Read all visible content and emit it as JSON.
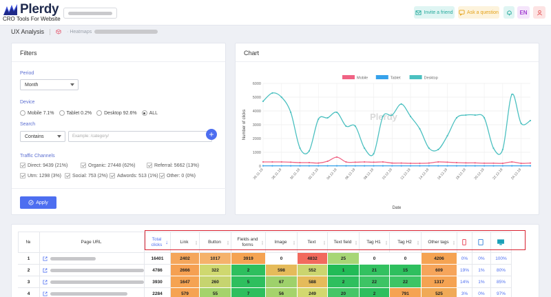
{
  "brand": {
    "name": "Plerdy",
    "tagline": "CRO Tools For Website"
  },
  "topbar": {
    "invite_label": "Invite a friend",
    "ask_label": "Ask a question",
    "lang": "EN"
  },
  "breadcrumb": {
    "title": "UX Analysis",
    "link": "Heatmaps"
  },
  "filters": {
    "title": "Filters",
    "period_label": "Period",
    "period_value": "Month",
    "device_label": "Device",
    "devices": [
      {
        "label": "Mobile 7.1%",
        "checked": false
      },
      {
        "label": "Tablet 0.2%",
        "checked": false
      },
      {
        "label": "Desktop 92.6%",
        "checked": false
      },
      {
        "label": "ALL",
        "checked": true
      }
    ],
    "search_label": "Search",
    "search_mode": "Contains",
    "search_placeholder": "Example: /category/",
    "plus_label": "+",
    "channels_label": "Traffic Channels",
    "channels_row1": [
      "Direct: 9439 (21%)",
      "Organic: 27448 (62%)",
      "Referral: 5662 (13%)"
    ],
    "channels_row2": [
      "Utm: 1298 (3%)",
      "Social: 753 (2%)",
      "Adwords: 513 (1%)",
      "Other: 0 (0%)"
    ],
    "apply_label": "Apply"
  },
  "chart": {
    "title": "Chart",
    "watermark": "Plerdy"
  },
  "chart_data": {
    "type": "line",
    "xlabel": "Date",
    "ylabel": "Number of clicks",
    "ylim": [
      0,
      6000
    ],
    "yticks": [
      0,
      1000,
      2000,
      3000,
      4000,
      5000,
      6000
    ],
    "x_ticks": [
      "26.11.19",
      "28.11.19",
      "30.11.19",
      "02.12.19",
      "04.12.19",
      "06.12.19",
      "08.12.19",
      "10.12.19",
      "12.12.19",
      "14.12.19",
      "16.12.19",
      "18.12.19",
      "20.12.19",
      "22.12.19",
      "24.12.19"
    ],
    "legend_position": "top",
    "series": [
      {
        "name": "Mobile",
        "color": "#f06384",
        "values": [
          300,
          300,
          300,
          280,
          250,
          250,
          220,
          350,
          650,
          300,
          280,
          300,
          280,
          300,
          220,
          220,
          200,
          200,
          220,
          300,
          280,
          250,
          230,
          230,
          210,
          210,
          200,
          300,
          200,
          220
        ]
      },
      {
        "name": "Tablet",
        "color": "#36a2eb",
        "values": [
          20,
          20,
          20,
          20,
          20,
          20,
          20,
          20,
          20,
          20,
          20,
          20,
          20,
          20,
          20,
          20,
          20,
          20,
          20,
          20,
          20,
          20,
          20,
          20,
          20,
          20,
          20,
          20,
          20,
          20
        ]
      },
      {
        "name": "Desktop",
        "color": "#4bc0c0",
        "values": [
          4700,
          5300,
          5000,
          3900,
          1300,
          1100,
          3400,
          3500,
          3900,
          2900,
          2900,
          1300,
          900,
          3600,
          3700,
          4500,
          3600,
          2700,
          1300,
          1200,
          2200,
          3500,
          3700,
          3700,
          3500,
          1300,
          1200,
          5200,
          3100,
          3300
        ]
      }
    ]
  },
  "table": {
    "headers": [
      "№",
      "Page URL",
      "Total clicks",
      "Link",
      "Button",
      "Fields and forms",
      "Image",
      "Text",
      "Text field",
      "Tag H1",
      "Tag H2",
      "Other tags"
    ],
    "device_icons": [
      "mobile-icon",
      "tablet-icon",
      "desktop-icon"
    ],
    "rows": [
      {
        "n": "1",
        "total": "16401",
        "cells": [
          "2402",
          "1017",
          "3919",
          "0",
          "4832",
          "25",
          "0",
          "0",
          "4206"
        ],
        "colors": [
          "#f5a65b",
          "#f5b26b",
          "#f5a352",
          "#ffffff",
          "#f26a5d",
          "#a7d676",
          "#ffffff",
          "#ffffff",
          "#f5a352"
        ],
        "pcts": [
          "0%",
          "0%",
          "100%"
        ]
      },
      {
        "n": "2",
        "total": "4786",
        "cells": [
          "2666",
          "322",
          "2",
          "598",
          "552",
          "1",
          "21",
          "15",
          "609"
        ],
        "colors": [
          "#f5a052",
          "#cfd86f",
          "#2ebf5e",
          "#e5bb5a",
          "#cbd56f",
          "#22bb57",
          "#33c160",
          "#2ebf5e",
          "#f6a55b"
        ],
        "pcts": [
          "19%",
          "1%",
          "80%"
        ]
      },
      {
        "n": "3",
        "total": "3930",
        "cells": [
          "1647",
          "260",
          "5",
          "67",
          "588",
          "2",
          "22",
          "22",
          "1317"
        ],
        "colors": [
          "#f5a352",
          "#c6d46f",
          "#2ebf5e",
          "#9ed16b",
          "#e5bb5a",
          "#2ebf5e",
          "#3dc465",
          "#3dc465",
          "#f5a352"
        ],
        "pcts": [
          "14%",
          "1%",
          "85%"
        ]
      },
      {
        "n": "4",
        "total": "2284",
        "cells": [
          "579",
          "55",
          "7",
          "56",
          "249",
          "20",
          "2",
          "791",
          "525"
        ],
        "colors": [
          "#f5a352",
          "#a5d36c",
          "#2ebf5e",
          "#a5d36c",
          "#d2d86f",
          "#45c667",
          "#2ebf5e",
          "#f5a352",
          "#f0aa57"
        ],
        "pcts": [
          "3%",
          "0%",
          "97%"
        ]
      }
    ]
  }
}
